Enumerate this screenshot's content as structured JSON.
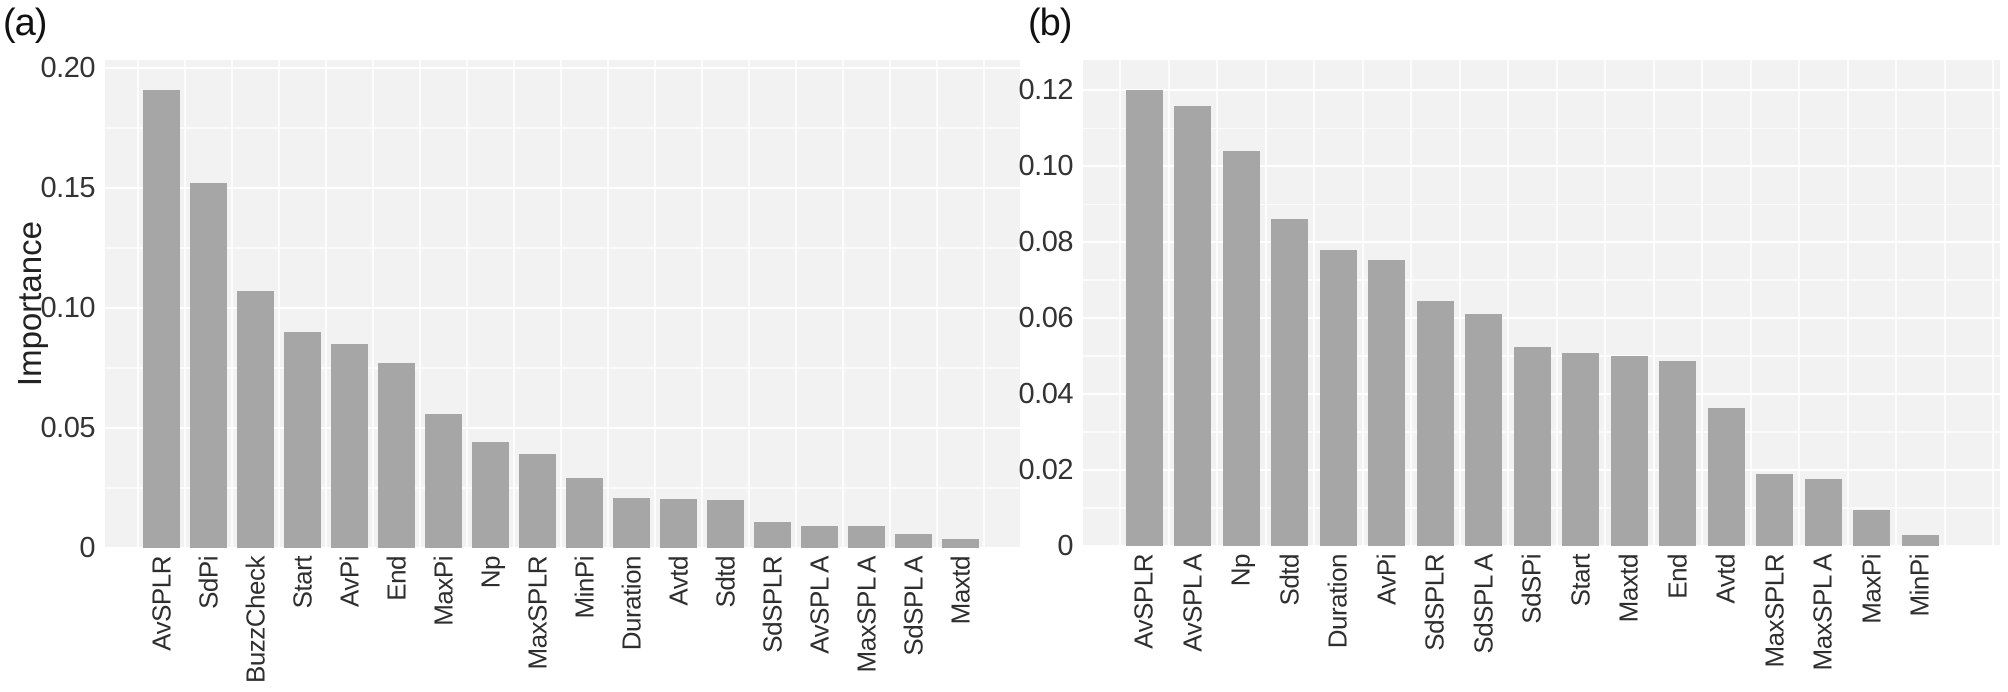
{
  "figure": {
    "panel_labels": [
      "(a)",
      "(b)"
    ],
    "bar_color": "#a6a6a6",
    "panel_bg": "#f2f2f2",
    "grid_color": "#ffffff"
  },
  "chart_data": [
    {
      "type": "bar",
      "panel_label": "(a)",
      "title": "",
      "xlabel": "",
      "ylabel": "Importance",
      "bar_color": "#a6a6a6",
      "panel_bg": "#f2f2f2",
      "grid": "major and minor white gridlines, horizontal and vertical",
      "legend": "none",
      "axis_max": 0.2033,
      "ylim": [
        0,
        0.2033
      ],
      "yticks": [
        {
          "v": 0,
          "label": "0"
        },
        {
          "v": 0.05,
          "label": "0.05"
        },
        {
          "v": 0.1,
          "label": "0.10"
        },
        {
          "v": 0.15,
          "label": "0.15"
        },
        {
          "v": 0.2,
          "label": "0.20"
        }
      ],
      "categories": [
        "AvSPLR",
        "SdPi",
        "BuzzCheck",
        "Start",
        "AvPi",
        "End",
        "MaxPi",
        "Np",
        "MaxSPLR",
        "MinPi",
        "Duration",
        "Avtd",
        "Sdtd",
        "SdSPLR",
        "AvSPL A",
        "MaxSPL A",
        "SdSPL A",
        "Maxtd"
      ],
      "values": [
        0.191,
        0.152,
        0.107,
        0.09,
        0.085,
        0.077,
        0.056,
        0.044,
        0.039,
        0.029,
        0.021,
        0.0203,
        0.02,
        0.0107,
        0.0093,
        0.009,
        0.0058,
        0.0038
      ]
    },
    {
      "type": "bar",
      "panel_label": "(b)",
      "title": "",
      "xlabel": "",
      "ylabel": "",
      "bar_color": "#a6a6a6",
      "panel_bg": "#f2f2f2",
      "grid": "major and minor white gridlines, horizontal and vertical",
      "legend": "none",
      "axis_max": 0.128,
      "ylim": [
        0,
        0.128
      ],
      "yticks": [
        {
          "v": 0,
          "label": "0"
        },
        {
          "v": 0.02,
          "label": "0.02"
        },
        {
          "v": 0.04,
          "label": "0.04"
        },
        {
          "v": 0.06,
          "label": "0.06"
        },
        {
          "v": 0.08,
          "label": "0.08"
        },
        {
          "v": 0.1,
          "label": "0.10"
        },
        {
          "v": 0.12,
          "label": "0.12"
        }
      ],
      "categories": [
        "AvSPLR",
        "AvSPL A",
        "Np",
        "Sdtd",
        "Duration",
        "AvPi",
        "SdSPLR",
        "SdSPL A",
        "SdSPi",
        "Start",
        "Maxtd",
        "End",
        "Avtd",
        "MaxSPLR",
        "MaxSPL A",
        "MaxPi",
        "MinPi"
      ],
      "values": [
        0.12,
        0.116,
        0.104,
        0.086,
        0.078,
        0.0753,
        0.0645,
        0.061,
        0.0523,
        0.0508,
        0.05,
        0.0487,
        0.0363,
        0.019,
        0.0177,
        0.0095,
        0.003
      ]
    }
  ]
}
